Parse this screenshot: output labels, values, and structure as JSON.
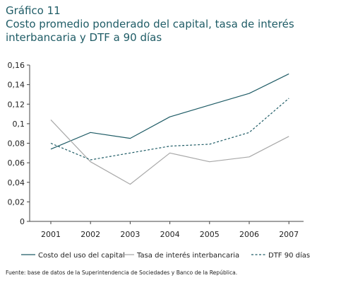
{
  "figure": {
    "label": "Gráfico 11",
    "title": "Costo promedio ponderado del capital, tasa de interés interbancaria y DTF a 90 días",
    "source": "Fuente: base de datos de la Superintendencia de Sociedades y Banco de la República."
  },
  "chart_data": {
    "type": "line",
    "title": "Costo promedio ponderado del capital, tasa de interés interbancaria y DTF a 90 días",
    "xlabel": "",
    "ylabel": "",
    "categories": [
      "2001",
      "2002",
      "2003",
      "2004",
      "2005",
      "2006",
      "2007"
    ],
    "ylim": [
      0,
      0.16
    ],
    "yticks": [
      0,
      0.02,
      0.04,
      0.06,
      0.08,
      0.1,
      0.12,
      0.14,
      0.16
    ],
    "ytick_labels": [
      "0",
      "0,02",
      "0,04",
      "0,06",
      "0,08",
      "0,1",
      "0,12",
      "0,14",
      "0,16"
    ],
    "grid": false,
    "legend_position": "bottom",
    "series": [
      {
        "name": "Costo del uso del capital",
        "values": [
          0.074,
          0.091,
          0.085,
          0.107,
          0.119,
          0.131,
          0.151
        ],
        "color": "#1f5c66",
        "style": "solid"
      },
      {
        "name": "Tasa de interés interbancaria",
        "values": [
          0.104,
          0.061,
          0.038,
          0.07,
          0.061,
          0.066,
          0.087
        ],
        "color": "#a8a8a8",
        "style": "solid"
      },
      {
        "name": "DTF 90 días",
        "values": [
          0.08,
          0.063,
          0.07,
          0.077,
          0.079,
          0.091,
          0.126
        ],
        "color": "#1f5c66",
        "style": "dashed"
      }
    ]
  }
}
